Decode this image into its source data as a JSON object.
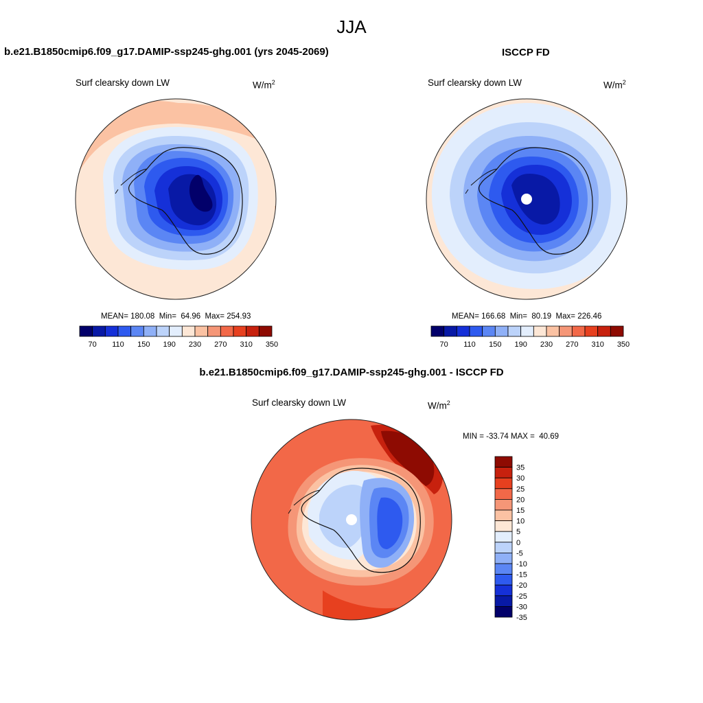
{
  "figure": {
    "season": "JJA"
  },
  "panels": {
    "model": {
      "case_title": "b.e21.B1850cmip6.f09_g17.DAMIP-ssp245-ghg.001 (yrs 2045-2069)",
      "variable": "Surf clearsky down LW",
      "units_base": "W/m",
      "units_exp": "2",
      "mean_label": "MEAN=",
      "mean": "180.08",
      "min_label": "Min=",
      "min": "64.96",
      "max_label": "Max=",
      "max": "254.93"
    },
    "obs": {
      "case_title": "ISCCP FD",
      "variable": "Surf clearsky down LW",
      "units_base": "W/m",
      "units_exp": "2",
      "mean_label": "MEAN=",
      "mean": "166.68",
      "min_label": "Min=",
      "min": "80.19",
      "max_label": "Max=",
      "max": "226.46"
    },
    "diff": {
      "case_title": "b.e21.B1850cmip6.f09_g17.DAMIP-ssp245-ghg.001 - ISCCP FD",
      "variable": "Surf clearsky down LW",
      "units_base": "W/m",
      "units_exp": "2",
      "minmax_text": "MIN = -33.74 MAX =  40.69"
    }
  },
  "colorbars": {
    "abs": {
      "colors": [
        "#02006a",
        "#0819a6",
        "#1530d8",
        "#2e5aef",
        "#5b86f4",
        "#8fb0f7",
        "#bcd3fa",
        "#e3eefd",
        "#fde7d6",
        "#fbc2a3",
        "#f59677",
        "#f26848",
        "#e7401f",
        "#c7210e",
        "#8e0b02"
      ],
      "tick_labels": [
        "70",
        "110",
        "150",
        "190",
        "230",
        "270",
        "310",
        "350"
      ]
    },
    "diff": {
      "colors": [
        "#02006a",
        "#0819a6",
        "#1530d8",
        "#2e5aef",
        "#5b86f4",
        "#8fb0f7",
        "#bcd3fa",
        "#e3eefd",
        "#fde7d6",
        "#fbc2a3",
        "#f59677",
        "#f26848",
        "#e7401f",
        "#c7210e",
        "#8e0b02"
      ],
      "tick_labels": [
        "-35",
        "-30",
        "-25",
        "-20",
        "-15",
        "-10",
        "-5",
        "0",
        "5",
        "10",
        "15",
        "20",
        "25",
        "30",
        "35"
      ]
    }
  }
}
